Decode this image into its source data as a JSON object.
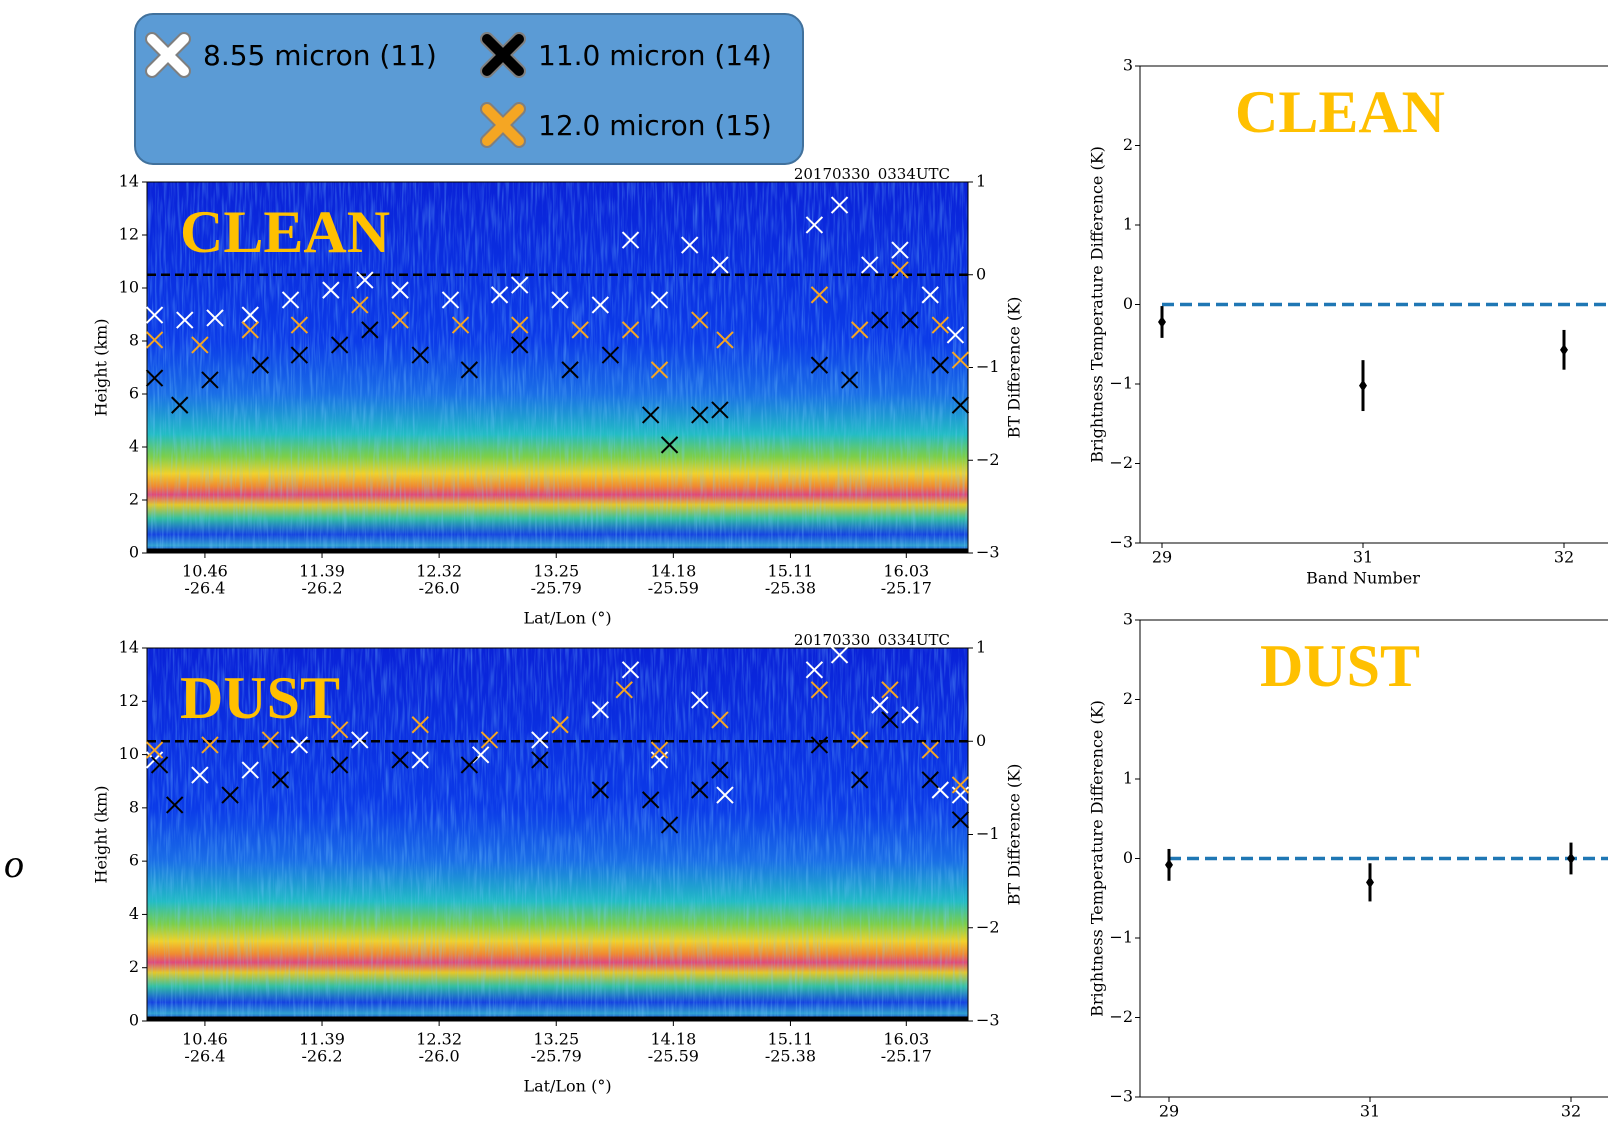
{
  "side_text": "o",
  "chart_data": [
    {
      "type": "curtain",
      "title": "CLEAN",
      "annotation": "20170330_0334UTC",
      "xlabel": "Lat/Lon (°)",
      "ylabel": "Height (km)",
      "y2label": "BT Difference (K)",
      "xlim": [
        10.0,
        16.52
      ],
      "xticks": [
        {
          "value": 10.46,
          "label": [
            "10.46",
            "-26.4"
          ]
        },
        {
          "value": 11.39,
          "label": [
            "11.39",
            "-26.2"
          ]
        },
        {
          "value": 12.32,
          "label": [
            "12.32",
            "-26.0"
          ]
        },
        {
          "value": 13.25,
          "label": [
            "13.25",
            "-25.79"
          ]
        },
        {
          "value": 14.18,
          "label": [
            "14.18",
            "-25.59"
          ]
        },
        {
          "value": 15.11,
          "label": [
            "15.11",
            "-25.38"
          ]
        },
        {
          "value": 16.03,
          "label": [
            "16.03",
            "-25.17"
          ]
        }
      ],
      "ylim": [
        0,
        14
      ],
      "yticks": [
        0,
        2,
        4,
        6,
        8,
        10,
        12,
        14
      ],
      "y2lim": [
        -3,
        1
      ],
      "y2ticks": [
        {
          "value": -3,
          "label": "−3"
        },
        {
          "value": -2,
          "label": "−2"
        },
        {
          "value": -1,
          "label": "−1"
        },
        0,
        1
      ],
      "reference_y2": 0,
      "series": [
        {
          "name": "8.55 micron (11)",
          "color": "#ffffff",
          "x": [
            10.06,
            10.3,
            10.54,
            10.82,
            11.14,
            11.46,
            11.73,
            12.01,
            12.41,
            12.8,
            12.96,
            13.28,
            13.6,
            13.84,
            14.07,
            14.31,
            14.55,
            15.3,
            15.5,
            15.74,
            15.98,
            16.22,
            16.42
          ],
          "values": [
            8.98,
            8.79,
            8.87,
            8.98,
            9.55,
            9.92,
            10.3,
            9.92,
            9.55,
            9.74,
            10.11,
            9.55,
            9.36,
            11.81,
            9.55,
            11.62,
            10.87,
            12.38,
            13.13,
            10.87,
            11.43,
            9.74,
            8.23
          ]
        },
        {
          "name": "11.0 micron (14)",
          "color": "#000000",
          "x": [
            10.06,
            10.26,
            10.5,
            10.9,
            11.21,
            11.53,
            11.77,
            12.17,
            12.56,
            12.96,
            13.36,
            13.68,
            14.0,
            14.15,
            14.39,
            14.55,
            15.34,
            15.58,
            15.82,
            16.06,
            16.3,
            16.46
          ],
          "values": [
            6.6,
            5.58,
            6.53,
            7.09,
            7.47,
            7.85,
            8.42,
            7.47,
            6.91,
            7.85,
            6.91,
            7.47,
            5.21,
            4.08,
            5.21,
            5.4,
            7.09,
            6.53,
            8.79,
            8.79,
            7.09,
            5.58
          ]
        },
        {
          "name": "12.0 micron (15)",
          "color": "#f5a623",
          "x": [
            10.06,
            10.42,
            10.82,
            11.21,
            11.69,
            12.01,
            12.49,
            12.96,
            13.44,
            13.84,
            14.07,
            14.39,
            14.59,
            15.34,
            15.66,
            15.98,
            16.3,
            16.46
          ],
          "values": [
            8.04,
            7.85,
            8.42,
            8.6,
            9.36,
            8.79,
            8.6,
            8.6,
            8.42,
            8.42,
            6.91,
            8.79,
            8.04,
            9.74,
            8.42,
            10.68,
            8.6,
            7.28
          ]
        }
      ]
    },
    {
      "type": "curtain",
      "title": "DUST",
      "annotation": "20170330_0334UTC",
      "xlabel": "Lat/Lon (°)",
      "ylabel": "Height (km)",
      "y2label": "BT Difference (K)",
      "xlim": [
        10.0,
        16.52
      ],
      "xticks": [
        {
          "value": 10.46,
          "label": [
            "10.46",
            "-26.4"
          ]
        },
        {
          "value": 11.39,
          "label": [
            "11.39",
            "-26.2"
          ]
        },
        {
          "value": 12.32,
          "label": [
            "12.32",
            "-26.0"
          ]
        },
        {
          "value": 13.25,
          "label": [
            "13.25",
            "-25.79"
          ]
        },
        {
          "value": 14.18,
          "label": [
            "14.18",
            "-25.59"
          ]
        },
        {
          "value": 15.11,
          "label": [
            "15.11",
            "-25.38"
          ]
        },
        {
          "value": 16.03,
          "label": [
            "16.03",
            "-25.17"
          ]
        }
      ],
      "ylim": [
        0,
        14
      ],
      "yticks": [
        0,
        2,
        4,
        6,
        8,
        10,
        12,
        14
      ],
      "y2lim": [
        -3,
        1
      ],
      "y2ticks": [
        {
          "value": -3,
          "label": "−3"
        },
        {
          "value": -2,
          "label": "−2"
        },
        {
          "value": -1,
          "label": "−1"
        },
        0,
        1
      ],
      "reference_y2": 0,
      "series": [
        {
          "color": "#ffffff",
          "x": [
            10.06,
            10.42,
            10.82,
            11.21,
            11.69,
            12.17,
            12.65,
            13.12,
            13.6,
            13.84,
            14.07,
            14.39,
            14.59,
            15.3,
            15.5,
            15.82,
            16.06,
            16.3,
            16.46
          ],
          "values": [
            9.8,
            9.23,
            9.42,
            10.36,
            10.55,
            9.8,
            9.99,
            10.55,
            11.68,
            13.18,
            9.8,
            12.05,
            8.48,
            13.18,
            13.74,
            11.86,
            11.49,
            8.67,
            8.48
          ]
        },
        {
          "color": "#000000",
          "x": [
            10.1,
            10.22,
            10.66,
            11.06,
            11.53,
            12.01,
            12.56,
            13.12,
            13.6,
            14.0,
            14.15,
            14.39,
            14.55,
            15.34,
            15.66,
            15.9,
            16.22,
            16.46
          ],
          "values": [
            9.61,
            8.11,
            8.48,
            9.05,
            9.61,
            9.8,
            9.61,
            9.8,
            8.67,
            8.3,
            7.36,
            8.67,
            9.42,
            10.36,
            9.05,
            11.3,
            9.05,
            7.55
          ]
        },
        {
          "color": "#f5a623",
          "x": [
            10.06,
            10.5,
            10.98,
            11.53,
            12.17,
            12.72,
            13.28,
            13.79,
            14.07,
            14.55,
            15.34,
            15.66,
            15.9,
            16.22,
            16.46
          ],
          "values": [
            10.17,
            10.36,
            10.55,
            10.93,
            11.12,
            10.55,
            11.12,
            12.43,
            10.17,
            11.3,
            12.43,
            10.55,
            12.43,
            10.17,
            8.86
          ]
        }
      ]
    },
    {
      "type": "errorbar",
      "title": "CLEAN",
      "xlabel": "Band Number",
      "ylabel": "Brightness Temperature Difference (K)",
      "categories": [
        "29",
        "31",
        "32"
      ],
      "values": [
        -0.22,
        -1.02,
        -0.57
      ],
      "errors": [
        0.2,
        0.32,
        0.25
      ],
      "color": "#000000",
      "ylim": [
        -3,
        3
      ],
      "yticks": [
        {
          "value": -3,
          "label": "−3"
        },
        {
          "value": -2,
          "label": "−2"
        },
        {
          "value": -1,
          "label": "−1"
        },
        0,
        1,
        2,
        3
      ],
      "reference": 0,
      "reference_color": "#1f77b4"
    },
    {
      "type": "errorbar",
      "title": "DUST",
      "ylabel": "Brightness Temperature Difference (K)",
      "categories": [
        "29",
        "31",
        "32"
      ],
      "values": [
        -0.08,
        -0.3,
        0.0
      ],
      "errors": [
        0.2,
        0.24,
        0.2
      ],
      "color": "#000000",
      "ylim": [
        -3,
        3
      ],
      "yticks": [
        {
          "value": -3,
          "label": "−3"
        },
        {
          "value": -2,
          "label": "−2"
        },
        {
          "value": -1,
          "label": "−1"
        },
        0,
        1,
        2,
        3
      ],
      "reference": 0,
      "reference_color": "#1f77b4"
    }
  ]
}
